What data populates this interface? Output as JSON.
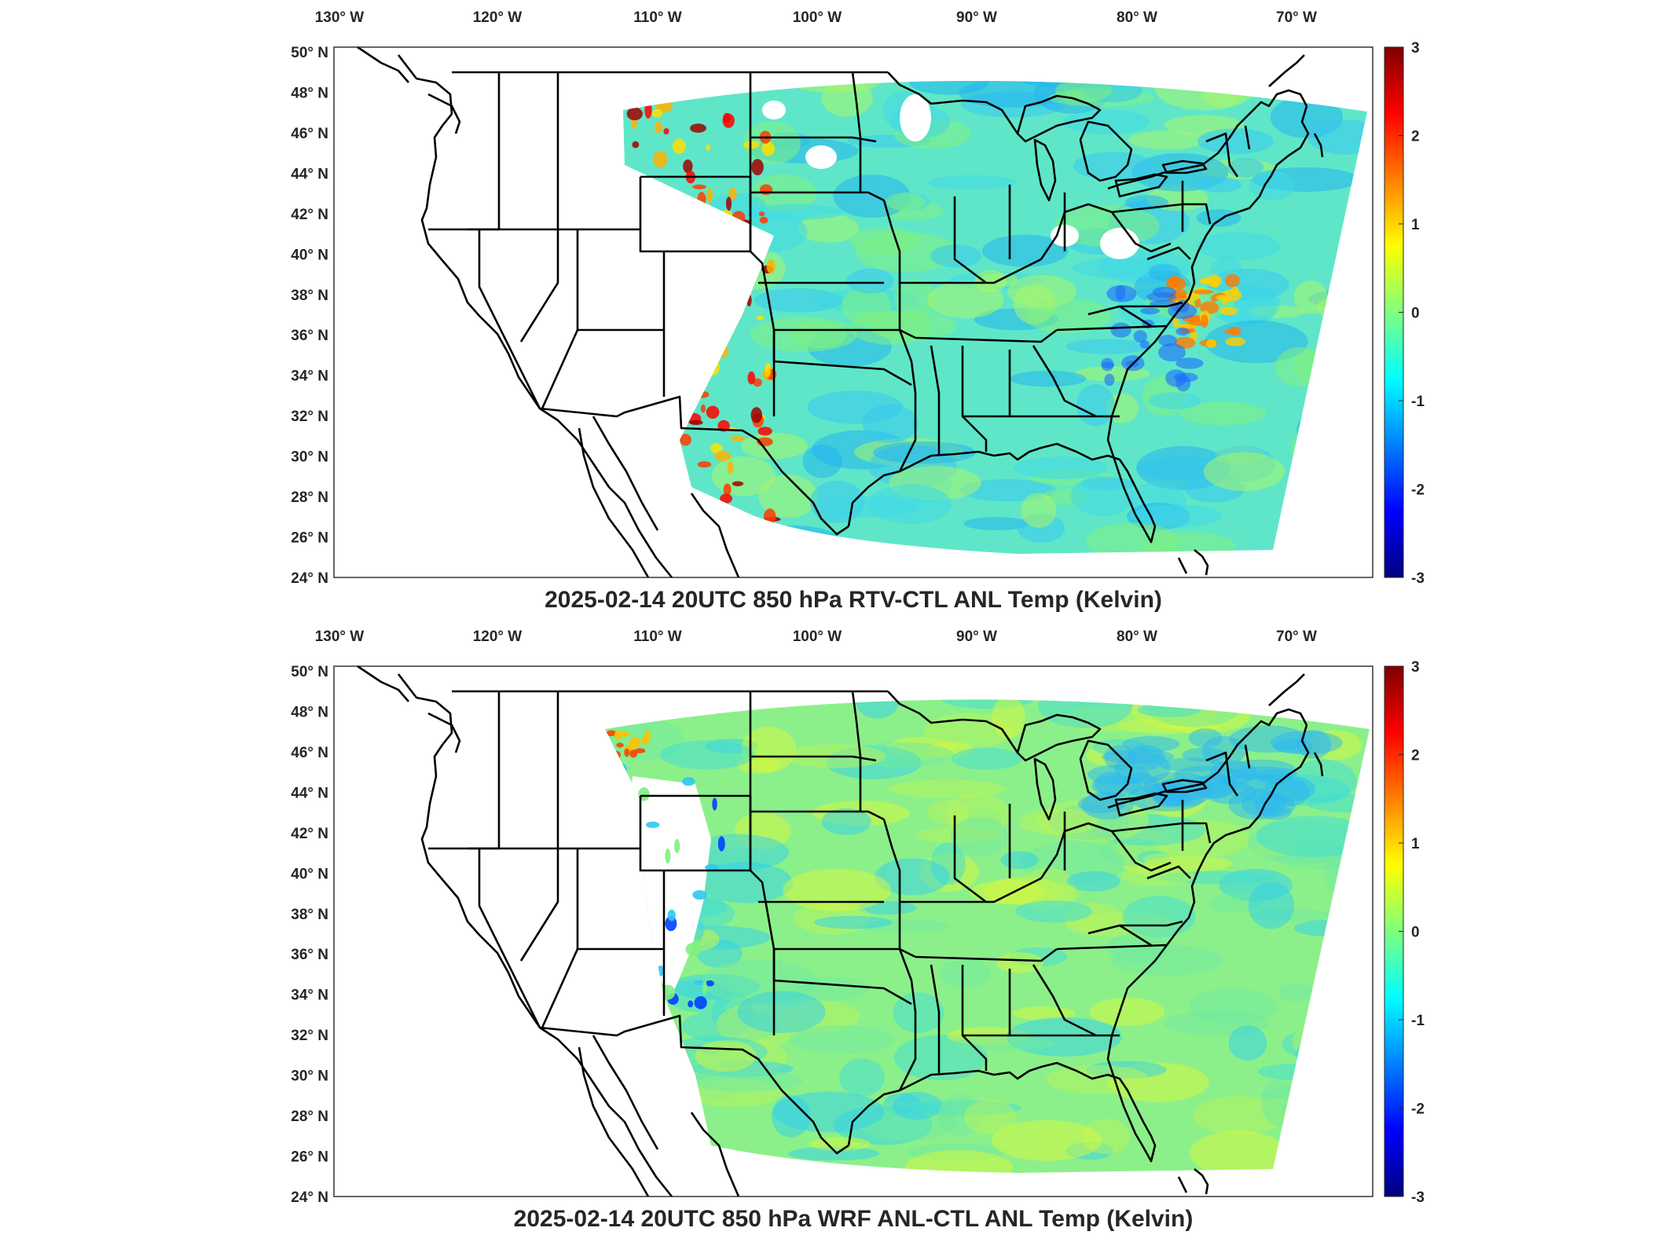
{
  "panels": [
    {
      "title": "2025-02-14 20UTC 850 hPa RTV-CTL ANL Temp (Kelvin)",
      "lon_ticks": [
        "130° W",
        "120° W",
        "110° W",
        "100° W",
        "90° W",
        "80° W",
        "70° W"
      ],
      "lat_ticks": [
        "50° N",
        "48° N",
        "46° N",
        "44° N",
        "42° N",
        "40° N",
        "38° N",
        "36° N",
        "34° N",
        "32° N",
        "30° N",
        "28° N",
        "26° N",
        "24° N"
      ],
      "colorbar_ticks": [
        "3",
        "2",
        "1",
        "0",
        "-1",
        "-2",
        "-3"
      ],
      "colorbar_range": [
        -3,
        3
      ]
    },
    {
      "title": "2025-02-14 20UTC 850 hPa WRF ANL-CTL ANL Temp (Kelvin)",
      "lon_ticks": [
        "130° W",
        "120° W",
        "110° W",
        "100° W",
        "90° W",
        "80° W",
        "70° W"
      ],
      "lat_ticks": [
        "50° N",
        "48° N",
        "46° N",
        "44° N",
        "42° N",
        "40° N",
        "38° N",
        "36° N",
        "34° N",
        "32° N",
        "30° N",
        "28° N",
        "26° N",
        "24° N"
      ],
      "colorbar_ticks": [
        "3",
        "2",
        "1",
        "0",
        "-1",
        "-2",
        "-3"
      ],
      "colorbar_range": [
        -3,
        3
      ]
    }
  ],
  "colormap": [
    "#00007f",
    "#0000ff",
    "#007fff",
    "#00ffff",
    "#7fff7f",
    "#ffff00",
    "#ff7f00",
    "#ff0000",
    "#7f0000"
  ]
}
